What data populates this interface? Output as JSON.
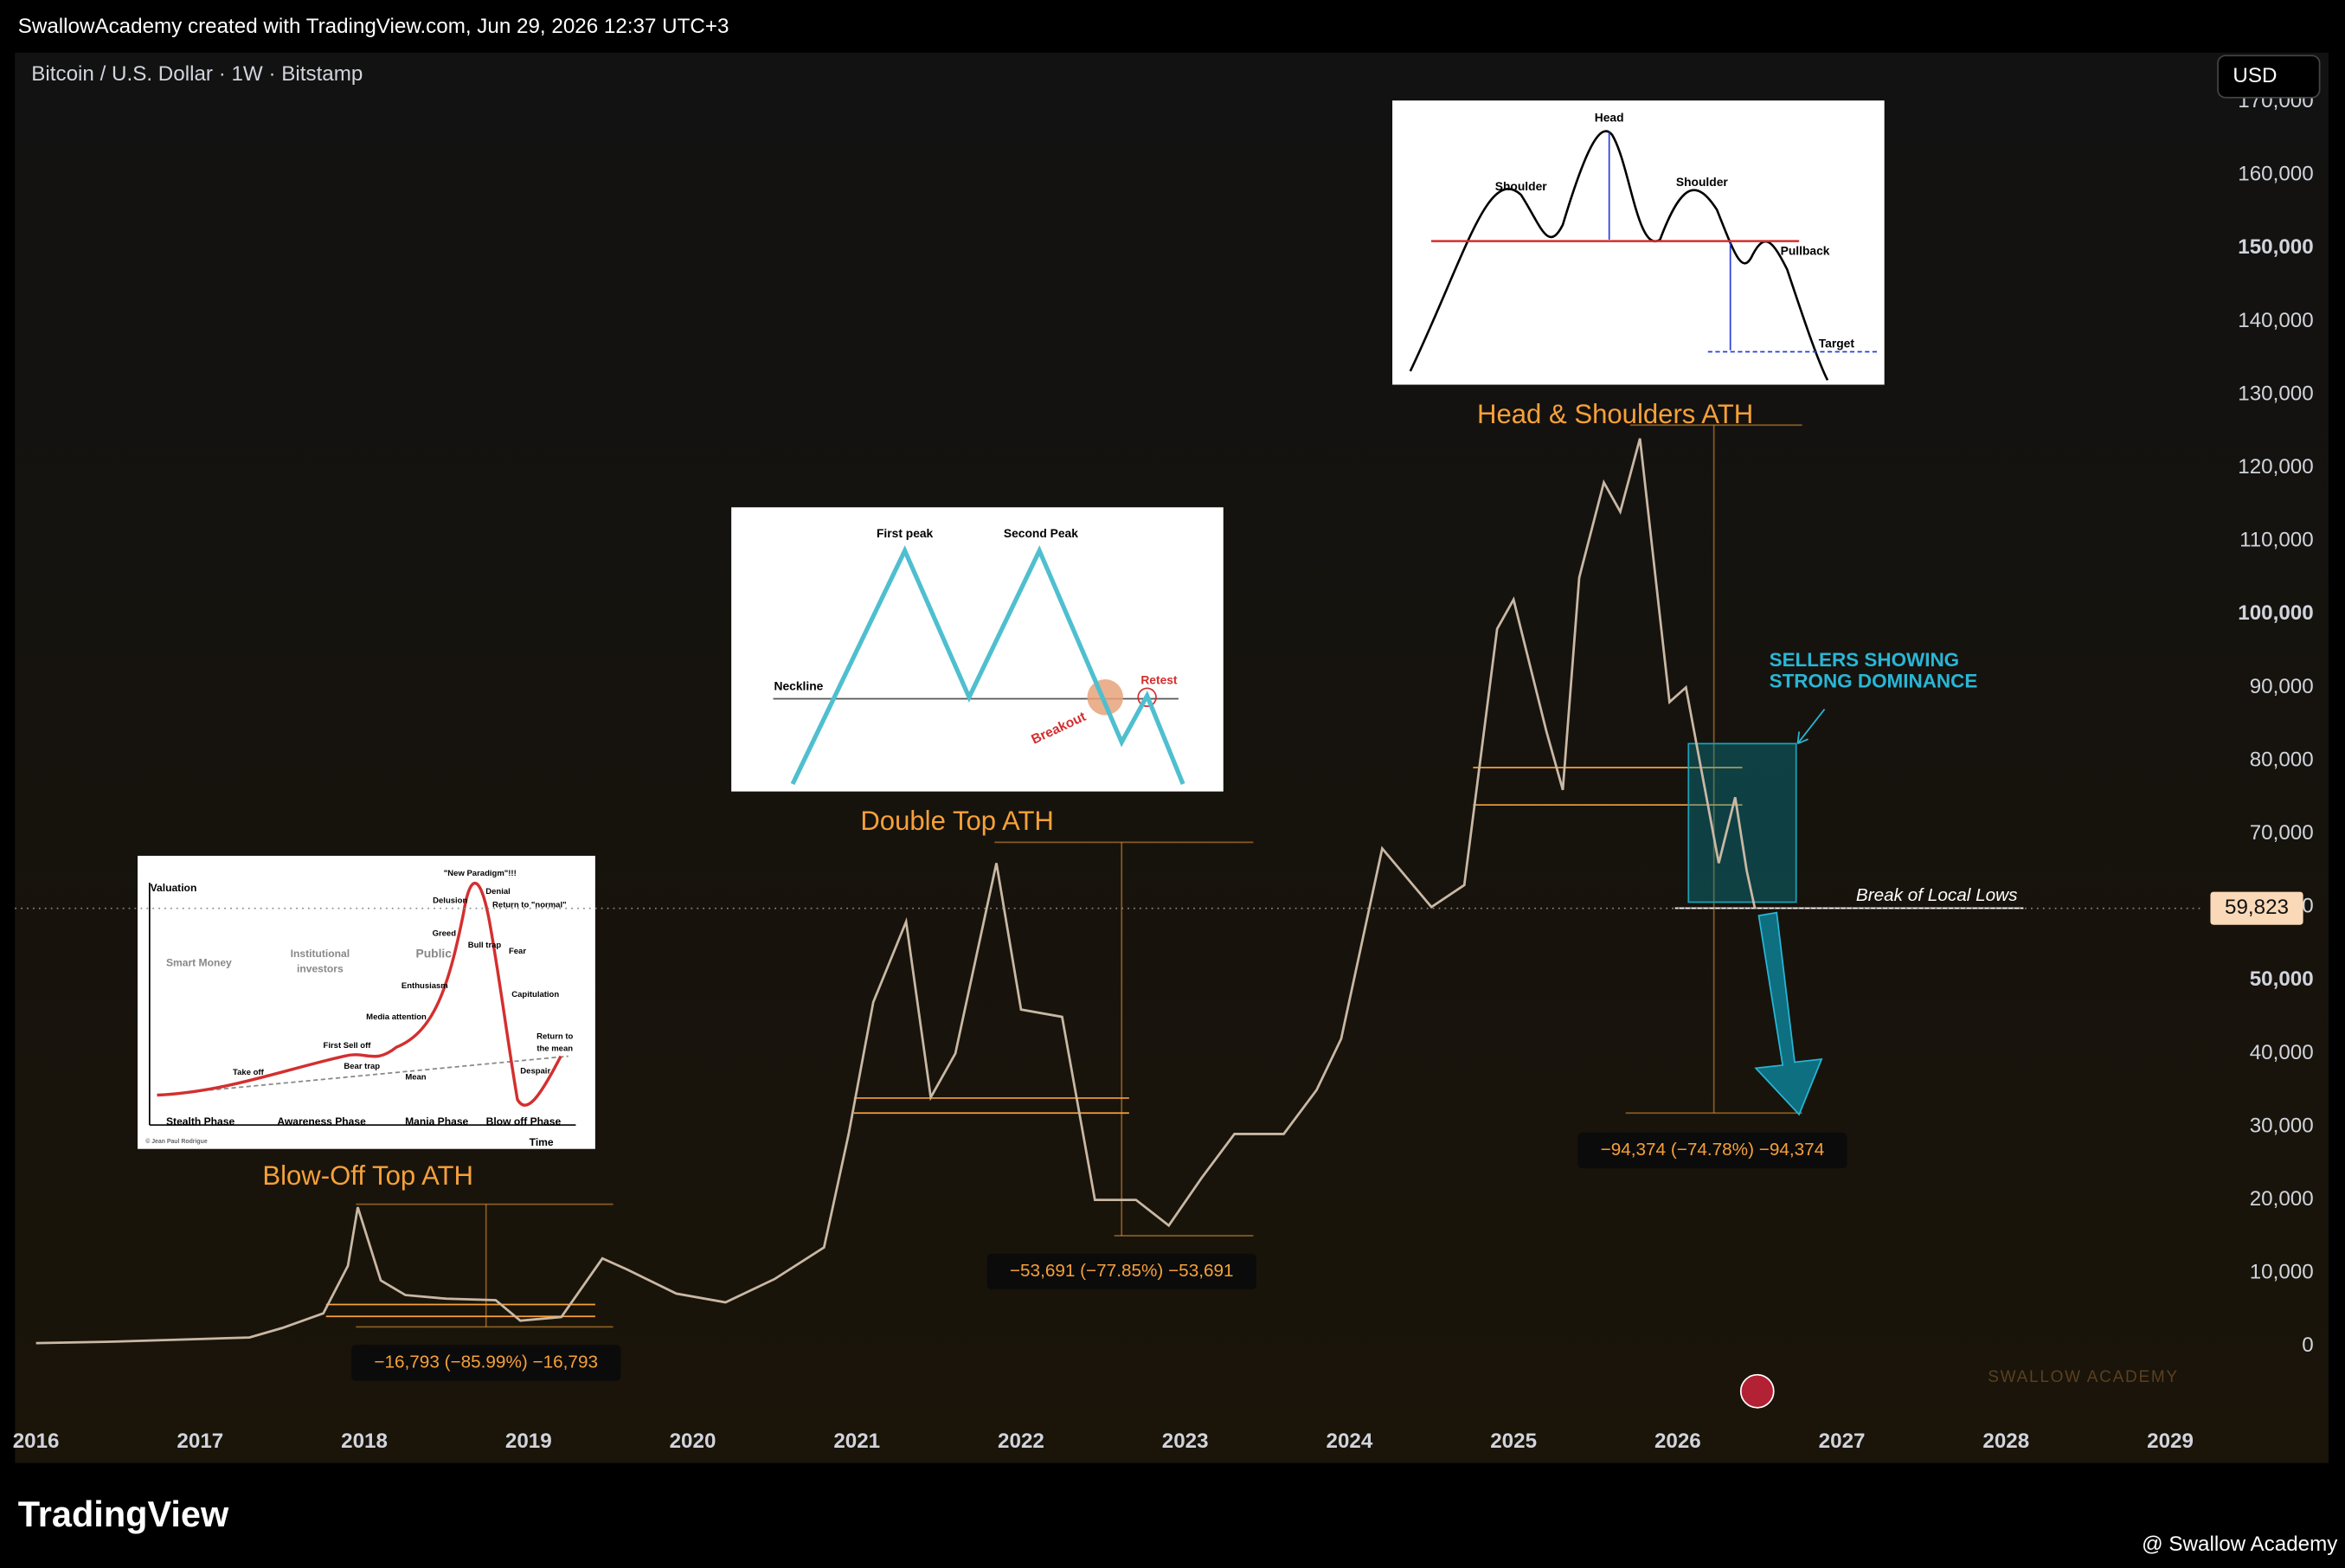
{
  "header": {
    "attribution": "SwallowAcademy created with TradingView.com, Jun 29, 2026 12:37 UTC+3",
    "symbol": "Bitcoin / U.S. Dollar · 1W · Bitstamp",
    "currency": "USD"
  },
  "chart_data": {
    "type": "line",
    "color": "#c9b8a4",
    "x": [
      2016.0,
      2016.5,
      2017.0,
      2017.3,
      2017.5,
      2017.75,
      2017.9,
      2017.96,
      2018.1,
      2018.25,
      2018.5,
      2018.8,
      2018.95,
      2019.2,
      2019.45,
      2019.6,
      2019.9,
      2020.2,
      2020.5,
      2020.8,
      2020.95,
      2021.1,
      2021.3,
      2021.45,
      2021.6,
      2021.85,
      2022.0,
      2022.25,
      2022.45,
      2022.7,
      2022.9,
      2023.1,
      2023.3,
      2023.6,
      2023.8,
      2023.95,
      2024.2,
      2024.5,
      2024.7,
      2024.9,
      2025.0,
      2025.2,
      2025.3,
      2025.4,
      2025.55,
      2025.65,
      2025.77,
      2025.85,
      2025.95,
      2026.05,
      2026.15,
      2026.25,
      2026.35,
      2026.42,
      2026.47
    ],
    "values": [
      430,
      650,
      1000,
      1200,
      2500,
      4500,
      11000,
      19000,
      9000,
      7000,
      6500,
      6300,
      3500,
      4000,
      12000,
      10500,
      7200,
      6000,
      9200,
      13500,
      29000,
      47000,
      58000,
      34000,
      40000,
      66000,
      46000,
      45000,
      20000,
      20000,
      16500,
      23000,
      29000,
      29000,
      35000,
      42000,
      68000,
      60000,
      63000,
      98000,
      102000,
      84000,
      76000,
      105000,
      118000,
      114000,
      124000,
      108000,
      88000,
      90000,
      78000,
      66000,
      75000,
      65000,
      59823
    ],
    "xlim": [
      2015.89,
      2029.19
    ],
    "xticks": [
      2016,
      2017,
      2018,
      2019,
      2020,
      2021,
      2022,
      2023,
      2024,
      2025,
      2026,
      2027,
      2028,
      2029
    ],
    "ylim": [
      -9200,
      176500
    ],
    "yticks": [
      0,
      {
        "value": 10000,
        "label": "10,000"
      },
      {
        "value": 20000,
        "label": "20,000"
      },
      {
        "value": 30000,
        "label": "30,000"
      },
      {
        "value": 40000,
        "label": "40,000"
      },
      {
        "value": 50000,
        "label": "50,000"
      },
      {
        "value": 60000,
        "label": "60,000"
      },
      {
        "value": 70000,
        "label": "70,000"
      },
      {
        "value": 80000,
        "label": "80,000"
      },
      {
        "value": 90000,
        "label": "90,000"
      },
      {
        "value": 100000,
        "label": "100,000"
      },
      {
        "value": 110000,
        "label": "110,000"
      },
      {
        "value": 120000,
        "label": "120,000"
      },
      {
        "value": 130000,
        "label": "130,000"
      },
      {
        "value": 140000,
        "label": "140,000"
      },
      {
        "value": 150000,
        "label": "150,000"
      },
      {
        "value": 160000,
        "label": "160,000"
      },
      {
        "value": 170000,
        "label": "170,000"
      }
    ],
    "last_price": {
      "value": 59823,
      "label": "59,823"
    },
    "annotations": {
      "hs_title": "Head & Shoulders ATH",
      "dt_title": "Double Top ATH",
      "bo_title": "Blow-Off Top ATH",
      "sellers": [
        "SELLERS SHOWING",
        "STRONG DOMINANCE"
      ],
      "break_lows": "Break of Local Lows",
      "measure_bo": "−16,793 (−85.99%) −16,793",
      "measure_dt": "−53,691 (−77.85%) −53,691",
      "measure_hs": "−94,374 (−74.78%) −94,374"
    }
  },
  "insets": {
    "head_shoulders": [
      "Head",
      "Shoulder",
      "Shoulder",
      "Pullback",
      "Target"
    ],
    "double_top": [
      "First peak",
      "Second Peak",
      "Neckline",
      "Retest",
      "Breakout"
    ],
    "cycle": [
      "Valuation",
      "Smart Money",
      "Institutional",
      "investors",
      "Public",
      "Stealth Phase",
      "Awareness Phase",
      "Mania Phase",
      "Blow off Phase",
      "Time",
      "\"New Paradigm\"!!!",
      "Delusion",
      "Denial",
      "Return to \"normal\"",
      "Greed",
      "Bull trap",
      "Fear",
      "Enthusiasm",
      "Capitulation",
      "Media attention",
      "First Sell off",
      "Bear trap",
      "Take off",
      "Mean",
      "Despair",
      "Return to",
      "the mean",
      "© Jean Paul Rodrigue"
    ]
  },
  "watermark": "SWALLOW ACADEMY",
  "footer": {
    "logo": "TradingView",
    "credit": "@ Swallow Academy"
  }
}
